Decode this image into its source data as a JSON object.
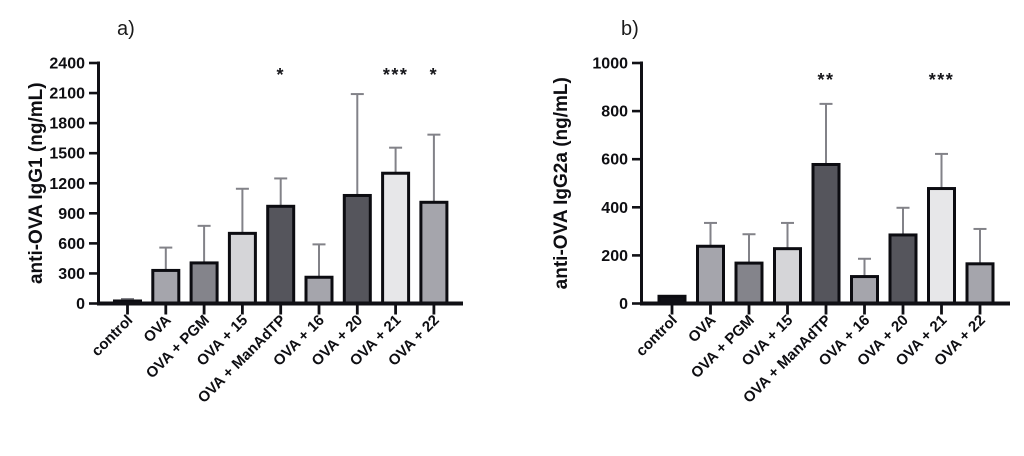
{
  "figure": {
    "background_color": "#ffffff",
    "panel_labels": {
      "a": "a)",
      "b": "b)"
    }
  },
  "chart_data": [
    {
      "type": "bar",
      "panel_label": "a)",
      "title": "",
      "xlabel": "",
      "ylabel": "anti-OVA IgG1 (ng/mL)",
      "ylim": [
        0,
        2400
      ],
      "yticks": [
        0,
        300,
        600,
        900,
        1200,
        1500,
        1800,
        2100,
        2400
      ],
      "grid": false,
      "legend": null,
      "categories": [
        "control",
        "OVA",
        "OVA + PGM",
        "OVA + 15",
        "OVA + ManAdTP",
        "OVA + 16",
        "OVA + 20",
        "OVA + 21",
        "OVA + 22"
      ],
      "values": [
        25,
        330,
        405,
        700,
        970,
        262,
        1078,
        1300,
        1010
      ],
      "error_bar_top": [
        45,
        558,
        775,
        1145,
        1248,
        590,
        2090,
        1555,
        1685
      ],
      "significance": [
        "",
        "",
        "",
        "",
        "*",
        "",
        "",
        "***",
        "*"
      ],
      "bar_colors": [
        "#101016",
        "#a5a5ac",
        "#84848b",
        "#d5d5d8",
        "#55555c",
        "#a5a5ac",
        "#55555c",
        "#e7e7e9",
        "#a5a5ac"
      ],
      "bar_outline_color": "#0c0c11",
      "error_bar_color": "#828288",
      "axis_color": "#101015"
    },
    {
      "type": "bar",
      "panel_label": "b)",
      "title": "",
      "xlabel": "",
      "ylabel": "anti-OVA IgG2a (ng/mL)",
      "ylim": [
        0,
        1000
      ],
      "yticks": [
        0,
        200,
        400,
        600,
        800,
        1000
      ],
      "grid": false,
      "legend": null,
      "categories": [
        "control",
        "OVA",
        "OVA + PGM",
        "OVA + 15",
        "OVA + ManAdTP",
        "OVA + 16",
        "OVA + 20",
        "OVA + 21",
        "OVA + 22"
      ],
      "values": [
        30,
        238,
        168,
        228,
        578,
        112,
        285,
        478,
        165
      ],
      "error_bar_top": [
        null,
        335,
        288,
        335,
        830,
        186,
        398,
        622,
        310
      ],
      "significance": [
        "",
        "",
        "",
        "",
        "**",
        "",
        "",
        "***",
        ""
      ],
      "bar_colors": [
        "#101016",
        "#a5a5ac",
        "#84848b",
        "#d5d5d8",
        "#55555c",
        "#a5a5ac",
        "#55555c",
        "#e7e7e9",
        "#a5a5ac"
      ],
      "bar_outline_color": "#0c0c11",
      "error_bar_color": "#828288",
      "axis_color": "#101015"
    }
  ]
}
